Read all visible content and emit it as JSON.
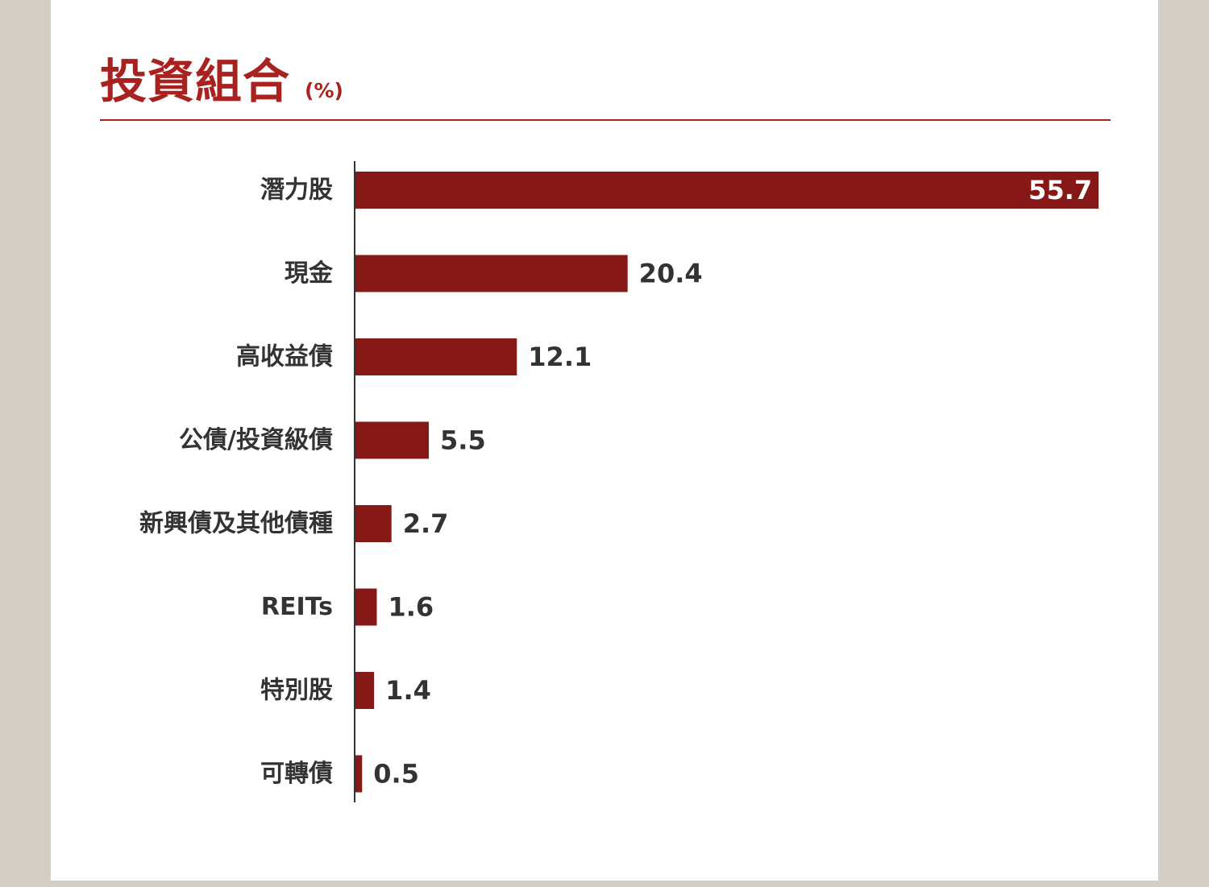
{
  "title": "投資組合",
  "unit": "(%)",
  "colors": {
    "background": "#d3cfc4",
    "panel": "#ffffff",
    "accent": "#a8231f",
    "bar": "#861818",
    "label": "#333333",
    "label_inside": "#ffffff"
  },
  "chart_data": {
    "type": "bar",
    "orientation": "horizontal",
    "categories": [
      "潛力股",
      "現金",
      "高收益債",
      "公債/投資級債",
      "新興債及其他債種",
      "REITs",
      "特別股",
      "可轉債"
    ],
    "values": [
      55.7,
      20.4,
      12.1,
      5.5,
      2.7,
      1.6,
      1.4,
      0.5
    ],
    "value_labels": [
      "55.7",
      "20.4",
      "12.1",
      "5.5",
      "2.7",
      "1.6",
      "1.4",
      "0.5"
    ],
    "title": "投資組合",
    "unit": "(%)",
    "xlim": [
      0,
      55.7
    ],
    "grid": false,
    "legend": "none"
  }
}
